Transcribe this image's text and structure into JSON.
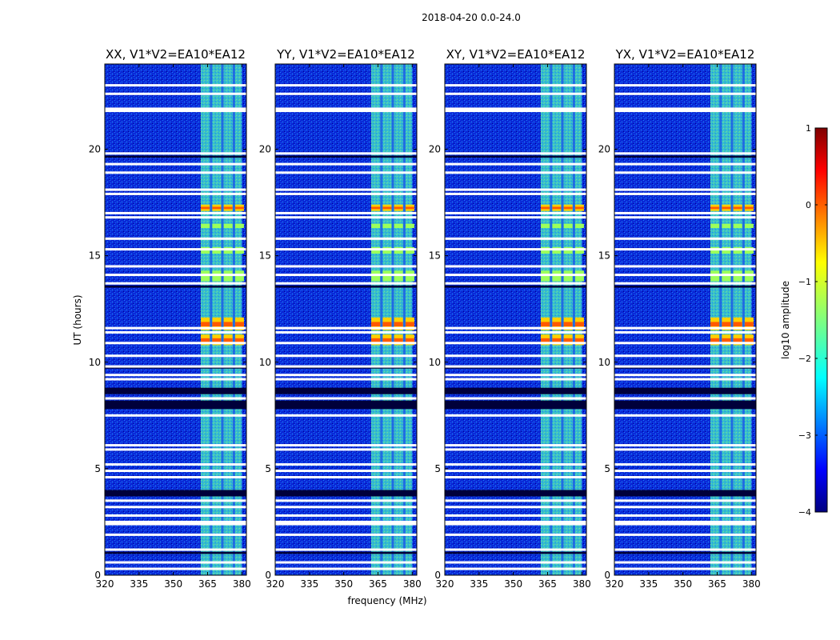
{
  "figure": {
    "suptitle": "2018-04-20 0.0-24.0"
  },
  "chart_data": {
    "type": "heatmap",
    "suptitle": "2018-04-20 0.0-24.0",
    "xlabel": "frequency (MHz)",
    "ylabel": "UT (hours)",
    "xlim": [
      320,
      382
    ],
    "ylim": [
      0,
      24
    ],
    "xticks": [
      320,
      335,
      350,
      365,
      380
    ],
    "yticks": [
      0,
      5,
      10,
      15,
      20
    ],
    "panels": [
      {
        "title": "XX, V1*V2=EA10*EA12",
        "polarization": "XX"
      },
      {
        "title": "YY, V1*V2=EA10*EA12",
        "polarization": "YY"
      },
      {
        "title": "XY, V1*V2=EA10*EA12",
        "polarization": "XY"
      },
      {
        "title": "YX, V1*V2=EA10*EA12",
        "polarization": "YX"
      }
    ],
    "colorbar": {
      "label": "log10 amplitude",
      "range": [
        -4,
        1
      ],
      "ticks": [
        1,
        0,
        -1,
        -2,
        -3,
        -4
      ],
      "colormap": "jet"
    },
    "signal_band_mhz": [
      362,
      380
    ],
    "subband_centers_mhz": [
      364,
      369,
      374,
      379
    ],
    "white_gap_ut": [
      23.0,
      22.6,
      21.9,
      21.8,
      19.8,
      19.3,
      18.9,
      18.1,
      17.9,
      17.0,
      16.8,
      15.8,
      15.3,
      14.5,
      14.1,
      13.7,
      11.6,
      11.4,
      10.9,
      10.3,
      9.8,
      9.4,
      9.2,
      8.3,
      7.5,
      6.1,
      5.9,
      5.2,
      4.9,
      4.6,
      3.5,
      3.2,
      2.8,
      2.5,
      2.4,
      1.9,
      1.2,
      0.6,
      0.3
    ],
    "black_flag_ut": [
      [
        7.8,
        8.2
      ],
      [
        8.5,
        8.8
      ],
      [
        3.7,
        4.0
      ],
      [
        9.7,
        9.8
      ],
      [
        13.5,
        13.6
      ],
      [
        19.6,
        19.7
      ],
      [
        1.0,
        1.1
      ]
    ],
    "strong_emission_ut": [
      [
        17.1,
        17.4
      ],
      [
        11.5,
        12.1
      ],
      [
        10.8,
        11.3
      ],
      [
        15.1,
        15.4
      ],
      [
        16.3,
        16.5
      ],
      [
        13.8,
        14.3
      ]
    ]
  }
}
